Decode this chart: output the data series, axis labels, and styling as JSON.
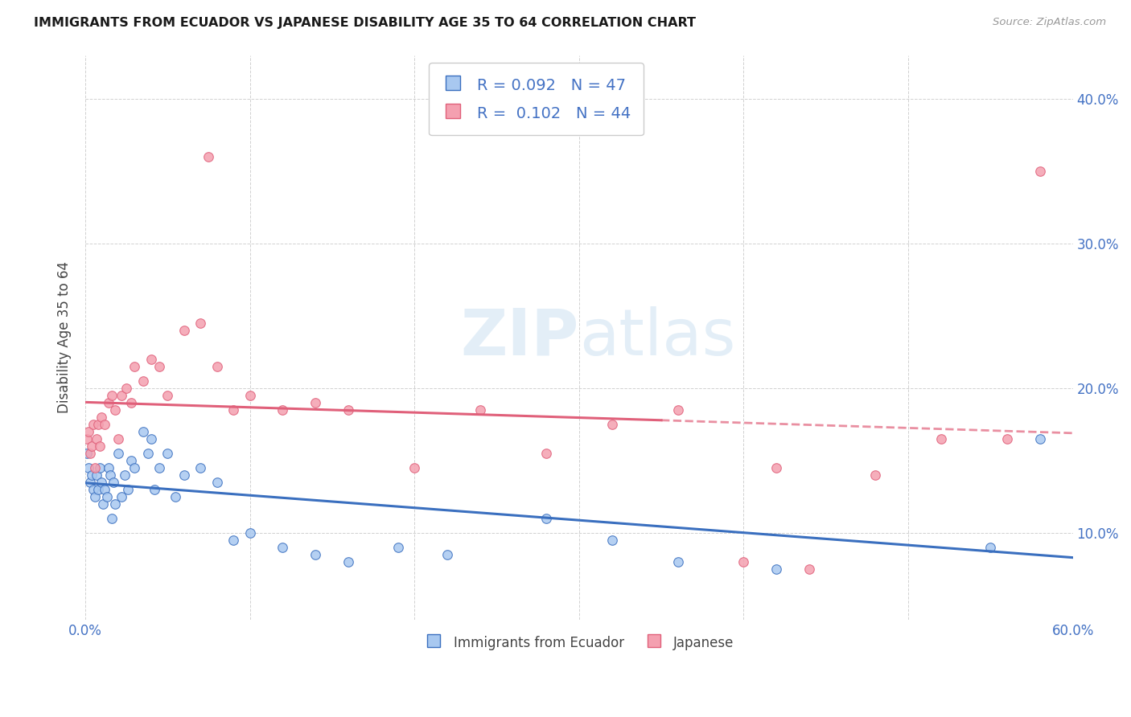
{
  "title": "IMMIGRANTS FROM ECUADOR VS JAPANESE DISABILITY AGE 35 TO 64 CORRELATION CHART",
  "source_text": "Source: ZipAtlas.com",
  "ylabel": "Disability Age 35 to 64",
  "xlim": [
    0.0,
    0.6
  ],
  "ylim": [
    0.04,
    0.43
  ],
  "color_ecuador": "#a8c8f0",
  "color_japanese": "#f4a0b0",
  "line_color_ecuador": "#3a6fbf",
  "line_color_japanese": "#e0607a",
  "watermark": "ZIPatlas",
  "ecuador_x": [
    0.001,
    0.002,
    0.003,
    0.004,
    0.005,
    0.006,
    0.007,
    0.008,
    0.009,
    0.01,
    0.011,
    0.012,
    0.013,
    0.014,
    0.015,
    0.016,
    0.017,
    0.018,
    0.02,
    0.022,
    0.024,
    0.026,
    0.028,
    0.03,
    0.035,
    0.038,
    0.04,
    0.042,
    0.045,
    0.05,
    0.055,
    0.06,
    0.07,
    0.08,
    0.09,
    0.1,
    0.12,
    0.14,
    0.16,
    0.19,
    0.22,
    0.28,
    0.32,
    0.36,
    0.42,
    0.55,
    0.58
  ],
  "ecuador_y": [
    0.155,
    0.145,
    0.135,
    0.14,
    0.13,
    0.125,
    0.14,
    0.13,
    0.145,
    0.135,
    0.12,
    0.13,
    0.125,
    0.145,
    0.14,
    0.11,
    0.135,
    0.12,
    0.155,
    0.125,
    0.14,
    0.13,
    0.15,
    0.145,
    0.17,
    0.155,
    0.165,
    0.13,
    0.145,
    0.155,
    0.125,
    0.14,
    0.145,
    0.135,
    0.095,
    0.1,
    0.09,
    0.085,
    0.08,
    0.09,
    0.085,
    0.11,
    0.095,
    0.08,
    0.075,
    0.09,
    0.165
  ],
  "japanese_x": [
    0.001,
    0.002,
    0.003,
    0.004,
    0.005,
    0.006,
    0.007,
    0.008,
    0.009,
    0.01,
    0.012,
    0.014,
    0.016,
    0.018,
    0.02,
    0.022,
    0.025,
    0.028,
    0.03,
    0.035,
    0.04,
    0.045,
    0.05,
    0.06,
    0.07,
    0.08,
    0.09,
    0.1,
    0.12,
    0.14,
    0.16,
    0.2,
    0.24,
    0.28,
    0.32,
    0.36,
    0.4,
    0.44,
    0.48,
    0.52,
    0.56,
    0.58,
    0.42,
    0.075
  ],
  "japanese_y": [
    0.165,
    0.17,
    0.155,
    0.16,
    0.175,
    0.145,
    0.165,
    0.175,
    0.16,
    0.18,
    0.175,
    0.19,
    0.195,
    0.185,
    0.165,
    0.195,
    0.2,
    0.19,
    0.215,
    0.205,
    0.22,
    0.215,
    0.195,
    0.24,
    0.245,
    0.215,
    0.185,
    0.195,
    0.185,
    0.19,
    0.185,
    0.145,
    0.185,
    0.155,
    0.175,
    0.185,
    0.08,
    0.075,
    0.14,
    0.165,
    0.165,
    0.35,
    0.145,
    0.36
  ]
}
